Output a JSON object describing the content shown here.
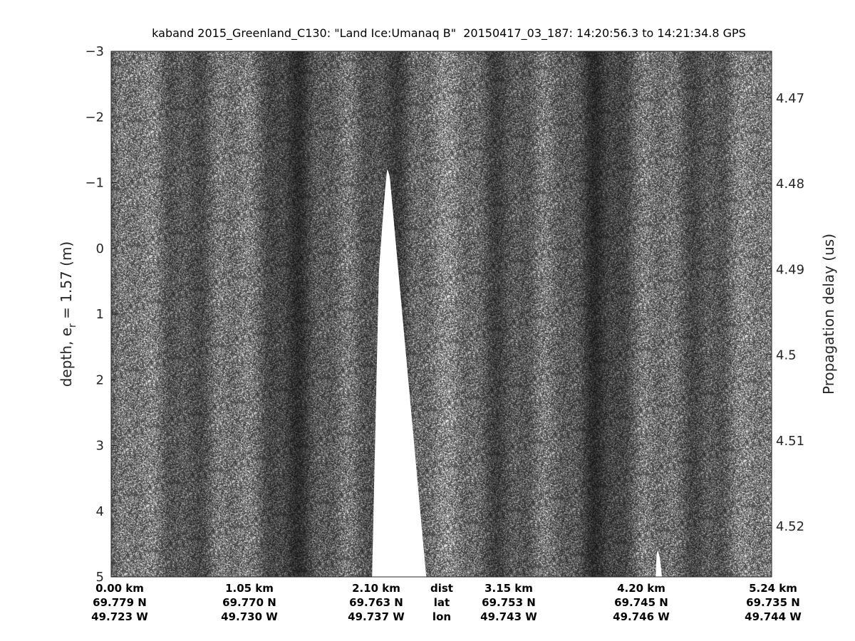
{
  "chart_data": {
    "type": "heatmap",
    "title": "kaband 2015_Greenland_C130: \"Land Ice:Umanaq B\"  20150417_03_187: 14:20:56.3 to 14:21:34.8 GPS",
    "ylabel_left": "depth, e",
    "ylabel_left_sub": "r",
    "ylabel_left_tail": " = 1.57 (m)",
    "ylabel_right": "Propagation delay (us)",
    "ylim_left": [
      -3,
      5
    ],
    "left_ticks": [
      "-3",
      "-2",
      "-1",
      "0",
      "1",
      "2",
      "3",
      "4",
      "5"
    ],
    "right_ticks": [
      "4.47",
      "4.48",
      "4.49",
      "4.5",
      "4.51",
      "4.52"
    ],
    "colormap": "gray",
    "bottom_rows": {
      "row_labels": [
        "dist",
        "lat",
        "lon"
      ],
      "dist": [
        "0.00 km",
        "1.05 km",
        "2.10 km",
        "3.15 km",
        "4.20 km",
        "5.24 km"
      ],
      "lat": [
        "69.779 N",
        "69.770 N",
        "69.763 N",
        "69.753 N",
        "69.745 N",
        "69.735 N"
      ],
      "lon": [
        "49.723 W",
        "49.730 W",
        "49.737 W",
        "49.743 W",
        "49.746 W",
        "49.744 W"
      ]
    },
    "no_data_regions": [
      {
        "dist_km": [
          2.07,
          2.5
        ],
        "top_depth_m": -1.2
      },
      {
        "dist_km": [
          4.32,
          4.37
        ],
        "top_depth_m": 4.6
      }
    ]
  }
}
